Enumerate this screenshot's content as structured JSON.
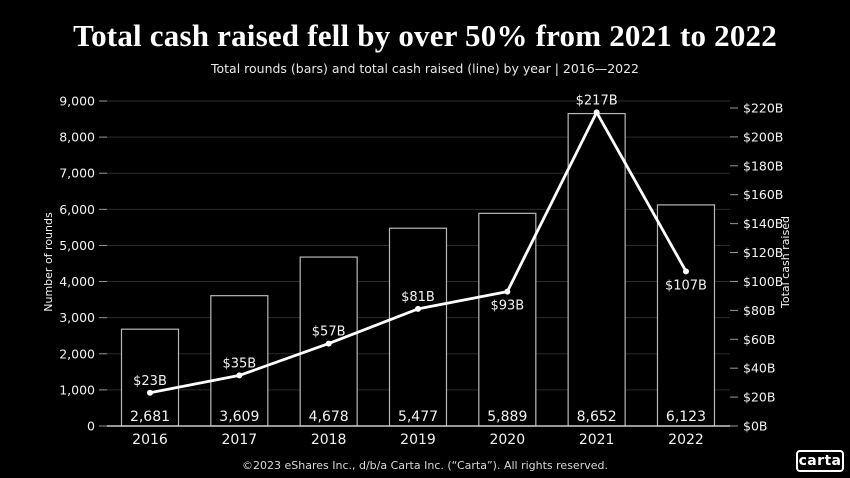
{
  "page": {
    "title": "Total cash raised fell by over 50% from 2021 to 2022",
    "subtitle": "Total rounds (bars) and total cash raised (line) by year | 2016—2022",
    "footer": "©2023 eShares Inc., d/b/a Carta Inc. (“Carta”). All rights reserved.",
    "logo_label": "carta"
  },
  "colors": {
    "background": "#000000",
    "text": "#ffffff",
    "tick_label": "#f2f2f2",
    "axis_title": "#e0e0e0",
    "grid": "#2b2b2b",
    "tick": "#999999",
    "baseline": "#c8c8c8",
    "bar_outline": "#b8b8b8",
    "bar_fill": "#000000",
    "line": "#ffffff"
  },
  "chart_data": {
    "type": "combo-bar-line",
    "categories": [
      "2016",
      "2017",
      "2018",
      "2019",
      "2020",
      "2021",
      "2022"
    ],
    "series": [
      {
        "name": "Total rounds",
        "type": "bar",
        "axis": "left",
        "values": [
          2681,
          3609,
          4678,
          5477,
          5889,
          8652,
          6123
        ],
        "labels": [
          "2,681",
          "3,609",
          "4,678",
          "5,477",
          "5,889",
          "8,652",
          "6,123"
        ]
      },
      {
        "name": "Total cash raised",
        "type": "line",
        "axis": "right",
        "values": [
          23,
          35,
          57,
          81,
          93,
          217,
          107
        ],
        "labels": [
          "$23B",
          "$35B",
          "$57B",
          "$81B",
          "$93B",
          "$217B",
          "$107B"
        ],
        "label_positions": [
          "above",
          "above",
          "above",
          "above",
          "below",
          "above",
          "below"
        ]
      }
    ],
    "left_axis": {
      "title": "Number of rounds",
      "min": 0,
      "max": 9000,
      "step": 1000,
      "tick_labels": [
        "0",
        "1,000",
        "2,000",
        "3,000",
        "4,000",
        "5,000",
        "6,000",
        "7,000",
        "8,000",
        "9,000"
      ]
    },
    "right_axis": {
      "title": "Total cash raised",
      "min": 0,
      "max": 220,
      "step": 20,
      "tick_labels": [
        "$0B",
        "$20B",
        "$40B",
        "$60B",
        "$80B",
        "$100B",
        "$120B",
        "$140B",
        "$160B",
        "$180B",
        "$200B",
        "$220B"
      ]
    },
    "grid": true,
    "legend": "none"
  }
}
